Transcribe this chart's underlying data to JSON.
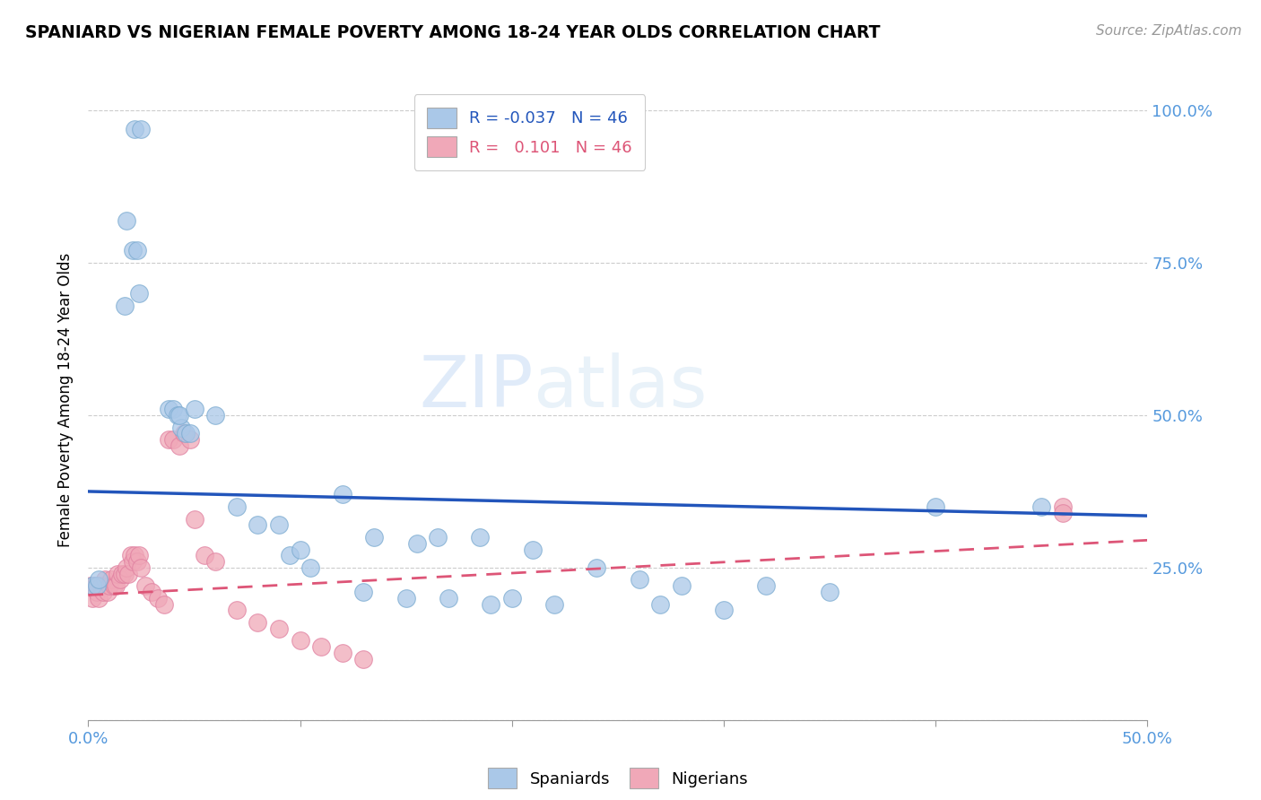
{
  "title": "SPANIARD VS NIGERIAN FEMALE POVERTY AMONG 18-24 YEAR OLDS CORRELATION CHART",
  "source": "Source: ZipAtlas.com",
  "ylabel": "Female Poverty Among 18-24 Year Olds",
  "xlim": [
    0.0,
    0.5
  ],
  "ylim": [
    0.0,
    1.05
  ],
  "watermark_zip": "ZIP",
  "watermark_atlas": "atlas",
  "blue_color": "#aac8e8",
  "pink_color": "#f0a8b8",
  "line_blue_color": "#2255bb",
  "line_pink_color": "#dd5577",
  "blue_scatter_edge": "#7aaad0",
  "pink_scatter_edge": "#e080a0",
  "spaniards_x": [
    0.022,
    0.025,
    0.018,
    0.021,
    0.023,
    0.017,
    0.024,
    0.038,
    0.04,
    0.042,
    0.044,
    0.046,
    0.043,
    0.048,
    0.05,
    0.06,
    0.07,
    0.08,
    0.09,
    0.095,
    0.1,
    0.105,
    0.13,
    0.15,
    0.17,
    0.19,
    0.2,
    0.22,
    0.27,
    0.3,
    0.12,
    0.135,
    0.155,
    0.165,
    0.185,
    0.21,
    0.24,
    0.26,
    0.28,
    0.32,
    0.35,
    0.4,
    0.45,
    0.002,
    0.004,
    0.005
  ],
  "spaniards_y": [
    0.97,
    0.97,
    0.82,
    0.77,
    0.77,
    0.68,
    0.7,
    0.51,
    0.51,
    0.5,
    0.48,
    0.47,
    0.5,
    0.47,
    0.51,
    0.5,
    0.35,
    0.32,
    0.32,
    0.27,
    0.28,
    0.25,
    0.21,
    0.2,
    0.2,
    0.19,
    0.2,
    0.19,
    0.19,
    0.18,
    0.37,
    0.3,
    0.29,
    0.3,
    0.3,
    0.28,
    0.25,
    0.23,
    0.22,
    0.22,
    0.21,
    0.35,
    0.35,
    0.22,
    0.22,
    0.23
  ],
  "nigerians_x": [
    0.001,
    0.002,
    0.003,
    0.004,
    0.005,
    0.006,
    0.007,
    0.008,
    0.009,
    0.01,
    0.011,
    0.012,
    0.013,
    0.014,
    0.015,
    0.016,
    0.017,
    0.018,
    0.019,
    0.02,
    0.021,
    0.022,
    0.023,
    0.024,
    0.025,
    0.027,
    0.03,
    0.033,
    0.036,
    0.038,
    0.04,
    0.043,
    0.045,
    0.048,
    0.05,
    0.055,
    0.06,
    0.07,
    0.08,
    0.09,
    0.1,
    0.11,
    0.12,
    0.13,
    0.46,
    0.46
  ],
  "nigerians_y": [
    0.22,
    0.2,
    0.22,
    0.21,
    0.2,
    0.22,
    0.21,
    0.23,
    0.21,
    0.22,
    0.23,
    0.22,
    0.22,
    0.24,
    0.23,
    0.24,
    0.24,
    0.25,
    0.24,
    0.27,
    0.26,
    0.27,
    0.26,
    0.27,
    0.25,
    0.22,
    0.21,
    0.2,
    0.19,
    0.46,
    0.46,
    0.45,
    0.47,
    0.46,
    0.33,
    0.27,
    0.26,
    0.18,
    0.16,
    0.15,
    0.13,
    0.12,
    0.11,
    0.1,
    0.35,
    0.34
  ],
  "blue_line_x0": 0.0,
  "blue_line_y0": 0.375,
  "blue_line_x1": 0.5,
  "blue_line_y1": 0.335,
  "pink_line_x0": 0.0,
  "pink_line_y0": 0.205,
  "pink_line_x1": 0.5,
  "pink_line_y1": 0.295
}
